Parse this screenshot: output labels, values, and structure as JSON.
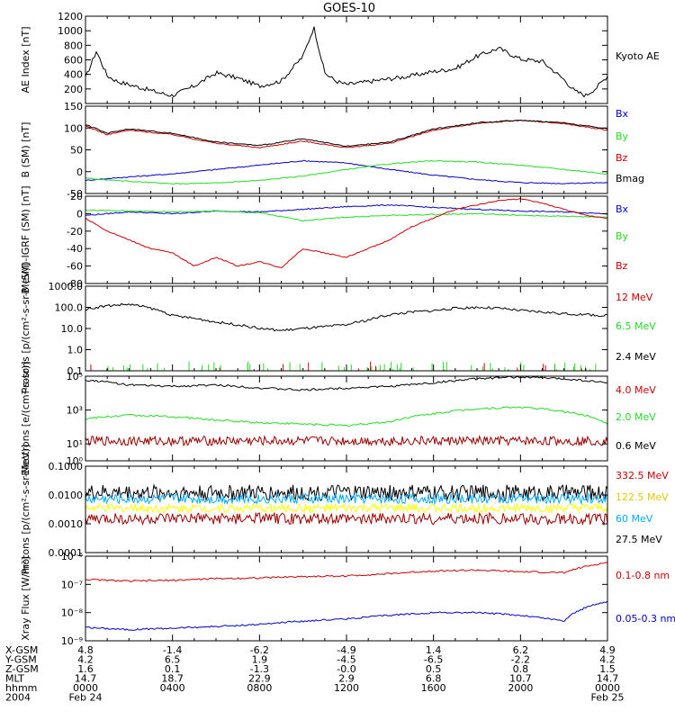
{
  "title": "GOES-10",
  "colors": {
    "black": "#000000",
    "blue": "#0000cc",
    "green": "#22dd22",
    "red": "#cc0000",
    "darkred": "#990000",
    "cyan": "#00aaff",
    "yellow": "#ffff00"
  },
  "chart_data": [
    {
      "type": "line",
      "ylabel": "AE Index [nT]",
      "ylim": [
        0,
        1200
      ],
      "yscale": "linear",
      "yticks": [
        {
          "v": 200,
          "label": "200"
        },
        {
          "v": 400,
          "label": "400"
        },
        {
          "v": 600,
          "label": "600"
        },
        {
          "v": 800,
          "label": "800"
        },
        {
          "v": 1000,
          "label": "1000"
        },
        {
          "v": 1200,
          "label": "1200"
        }
      ],
      "series": [
        {
          "name": "Kyoto AE",
          "color": "#000000",
          "legend_y": 62,
          "x": [
            0,
            0.5,
            1,
            1.5,
            2,
            2.5,
            3,
            3.5,
            4,
            5,
            6,
            7,
            8,
            9,
            10,
            10.5,
            11,
            11.5,
            12,
            13,
            14,
            15,
            16,
            17,
            18,
            19,
            20,
            21,
            22,
            22.5,
            23,
            23.5,
            24
          ],
          "values": [
            350,
            720,
            380,
            300,
            260,
            220,
            180,
            140,
            110,
            240,
            420,
            350,
            240,
            310,
            650,
            1050,
            420,
            310,
            260,
            300,
            340,
            380,
            440,
            480,
            650,
            760,
            610,
            580,
            330,
            170,
            110,
            220,
            380
          ]
        }
      ]
    },
    {
      "type": "line",
      "ylabel": "B (SM) [nT]",
      "ylim": [
        -50,
        150
      ],
      "yscale": "linear",
      "yticks": [
        {
          "v": -50,
          "label": "-50"
        },
        {
          "v": 0,
          "label": "0"
        },
        {
          "v": 50,
          "label": "50"
        },
        {
          "v": 100,
          "label": "100"
        },
        {
          "v": 150,
          "label": "150"
        }
      ],
      "series": [
        {
          "name": "Bx",
          "color": "#0000cc",
          "legend_y": 126,
          "x": [
            0,
            2,
            4,
            6,
            8,
            10,
            12,
            14,
            16,
            18,
            20,
            22,
            24
          ],
          "values": [
            -20,
            -12,
            -5,
            5,
            15,
            25,
            20,
            5,
            -8,
            -18,
            -25,
            -27,
            -25
          ]
        },
        {
          "name": "By",
          "color": "#22dd22",
          "legend_y": 151,
          "x": [
            0,
            2,
            4,
            6,
            8,
            10,
            12,
            14,
            16,
            18,
            20,
            22,
            24
          ],
          "values": [
            -15,
            -22,
            -28,
            -26,
            -20,
            -10,
            5,
            18,
            25,
            22,
            15,
            5,
            -5
          ]
        },
        {
          "name": "Bz",
          "color": "#cc0000",
          "legend_y": 175,
          "x": [
            0,
            1,
            2,
            4,
            6,
            8,
            10,
            12,
            14,
            16,
            18,
            20,
            22,
            24
          ],
          "values": [
            105,
            85,
            95,
            85,
            65,
            55,
            70,
            55,
            65,
            95,
            110,
            118,
            110,
            95
          ]
        },
        {
          "name": "Bmag",
          "color": "#000000",
          "legend_y": 198,
          "x": [
            0,
            1,
            2,
            4,
            6,
            8,
            10,
            12,
            14,
            16,
            18,
            20,
            22,
            24
          ],
          "values": [
            108,
            88,
            98,
            88,
            68,
            60,
            75,
            58,
            68,
            98,
            112,
            118,
            112,
            98
          ]
        }
      ]
    },
    {
      "type": "line",
      "ylabel": "B (SM)-IGRF (SM) [nT]",
      "ylim": [
        -80,
        20
      ],
      "yscale": "linear",
      "yticks": [
        {
          "v": -80,
          "label": "-80"
        },
        {
          "v": -60,
          "label": "-60"
        },
        {
          "v": -40,
          "label": "-40"
        },
        {
          "v": -20,
          "label": "-20"
        },
        {
          "v": 0,
          "label": "0"
        },
        {
          "v": 20,
          "label": "20"
        }
      ],
      "series": [
        {
          "name": "Bx",
          "color": "#0000cc",
          "legend_y": 232,
          "x": [
            0,
            2,
            4,
            6,
            8,
            10,
            12,
            14,
            16,
            18,
            20,
            22,
            24
          ],
          "values": [
            -2,
            2,
            0,
            3,
            2,
            5,
            8,
            10,
            7,
            5,
            3,
            2,
            0
          ]
        },
        {
          "name": "By",
          "color": "#22dd22",
          "legend_y": 262,
          "x": [
            0,
            2,
            4,
            6,
            8,
            10,
            12,
            14,
            16,
            18,
            20,
            22,
            24
          ],
          "values": [
            4,
            3,
            2,
            3,
            1,
            -8,
            -4,
            -2,
            -1,
            0,
            -2,
            -3,
            -4
          ]
        },
        {
          "name": "Bz",
          "color": "#cc0000",
          "legend_y": 295,
          "x": [
            0,
            1,
            2,
            3,
            4,
            5,
            6,
            7,
            8,
            9,
            10,
            11,
            12,
            13,
            14,
            15,
            16,
            17,
            18,
            19,
            20,
            21,
            22,
            23,
            24
          ],
          "values": [
            -5,
            -20,
            -30,
            -40,
            -45,
            -60,
            -50,
            -60,
            -55,
            -62,
            -40,
            -45,
            -50,
            -40,
            -30,
            -15,
            -5,
            5,
            10,
            15,
            17,
            12,
            5,
            -2,
            -5
          ]
        }
      ]
    },
    {
      "type": "line",
      "ylabel": "Protons [p/(cm²-s-sr-MeV)]",
      "ylim": [
        0.1,
        1000
      ],
      "yscale": "log",
      "yticks": [
        {
          "v": 0.1,
          "label": "0.1"
        },
        {
          "v": 1,
          "label": "1.0"
        },
        {
          "v": 10,
          "label": "10.0"
        },
        {
          "v": 100,
          "label": "100.0"
        },
        {
          "v": 1000,
          "label": "1000.0"
        }
      ],
      "series": [
        {
          "name": "12 MeV",
          "color": "#cc0000",
          "legend_y": 330,
          "x": [],
          "values": []
        },
        {
          "name": "6.5 MeV",
          "color": "#22dd22",
          "legend_y": 362,
          "x": [],
          "values": []
        },
        {
          "name": "2.4 MeV",
          "color": "#000000",
          "legend_y": 396,
          "x": [
            0,
            1,
            2,
            3,
            4,
            5,
            6,
            7,
            8,
            9,
            10,
            11,
            12,
            13,
            14,
            15,
            16,
            17,
            18,
            19,
            20,
            21,
            22,
            23,
            24
          ],
          "values": [
            80,
            120,
            140,
            90,
            40,
            30,
            20,
            15,
            10,
            8,
            10,
            12,
            15,
            25,
            45,
            60,
            70,
            90,
            100,
            90,
            70,
            60,
            50,
            45,
            40
          ]
        }
      ]
    },
    {
      "type": "line",
      "ylabel": "Electrons [e/(cm²-s-sr)]",
      "ylim": [
        1,
        100000
      ],
      "yscale": "log",
      "yticks": [
        {
          "v": 1,
          "label": "10⁰"
        },
        {
          "v": 10,
          "label": "10¹"
        },
        {
          "v": 1000,
          "label": "10³"
        },
        {
          "v": 100000,
          "label": "10⁵"
        }
      ],
      "series": [
        {
          "name": "4.0 MeV",
          "color": "#cc0000",
          "legend_y": 433,
          "x": [],
          "values": []
        },
        {
          "name": "2.0 MeV",
          "color": "#22dd22",
          "legend_y": 463,
          "x": [
            0,
            2,
            4,
            6,
            8,
            10,
            12,
            14,
            16,
            18,
            20,
            22,
            24
          ],
          "values": [
            300,
            500,
            400,
            250,
            180,
            150,
            120,
            200,
            600,
            1200,
            1500,
            800,
            150
          ]
        },
        {
          "name": "0.6 MeV",
          "color": "#000000",
          "legend_y": 495,
          "x": [
            0,
            2,
            4,
            6,
            8,
            10,
            12,
            14,
            16,
            18,
            20,
            22,
            24
          ],
          "values": [
            60000,
            30000,
            25000,
            30000,
            20000,
            15000,
            20000,
            25000,
            40000,
            70000,
            90000,
            70000,
            40000
          ]
        }
      ]
    },
    {
      "type": "line",
      "ylabel": "Protons [p/(cm²-s-sr-MeV)]",
      "ylim": [
        0.0001,
        0.1
      ],
      "yscale": "log",
      "yticks": [
        {
          "v": 0.0001,
          "label": "0.0001"
        },
        {
          "v": 0.001,
          "label": "0.0010"
        },
        {
          "v": 0.01,
          "label": "0.0100"
        },
        {
          "v": 0.1,
          "label": "0.1000"
        }
      ],
      "series": [
        {
          "name": "332.5 MeV",
          "color": "#cc0000",
          "legend_y": 528,
          "x": [],
          "values": []
        },
        {
          "name": "122.5 MeV",
          "color": "#ffff00",
          "legend_y": 552,
          "x": [],
          "values": []
        },
        {
          "name": "60 MeV",
          "color": "#00aaff",
          "legend_y": 576,
          "x": [],
          "values": []
        },
        {
          "name": "27.5 MeV",
          "color": "#000000",
          "legend_y": 599,
          "x": [],
          "values": []
        }
      ]
    },
    {
      "type": "line",
      "ylabel": "Xray Flux [W/m²]",
      "ylim": [
        1e-09,
        1e-06
      ],
      "yscale": "log",
      "yticks": [
        {
          "v": 1e-09,
          "label": "10⁻⁹"
        },
        {
          "v": 1e-08,
          "label": "10⁻⁸"
        },
        {
          "v": 1e-07,
          "label": "10⁻⁷"
        },
        {
          "v": 1e-06,
          "label": "10⁻⁶"
        }
      ],
      "series": [
        {
          "name": "0.1-0.8 nm",
          "color": "#cc0000",
          "legend_y": 639,
          "x": [
            0,
            2,
            4,
            6,
            8,
            10,
            12,
            14,
            16,
            18,
            20,
            22,
            24
          ],
          "values": [
            1.5e-07,
            1.3e-07,
            1.4e-07,
            1.6e-07,
            1.7e-07,
            1.9e-07,
            2e-07,
            2.4e-07,
            3e-07,
            3.2e-07,
            2.8e-07,
            2.6e-07,
            6e-07
          ]
        },
        {
          "name": "0.05-0.3 nm",
          "color": "#0000cc",
          "legend_y": 687,
          "x": [
            0,
            2,
            4,
            6,
            8,
            10,
            12,
            14,
            16,
            18,
            20,
            22,
            24
          ],
          "values": [
            3e-09,
            2.5e-09,
            2.8e-09,
            3.2e-09,
            3.8e-09,
            5e-09,
            6e-09,
            8e-09,
            1e-08,
            1e-08,
            8e-09,
            5e-09,
            2.5e-08
          ]
        }
      ]
    }
  ],
  "footer": {
    "rows": [
      {
        "label": "X-GSM",
        "values": [
          "4.8",
          "-1.4",
          "-6.2",
          "-4.9",
          "1.4",
          "6.2",
          "4.9"
        ]
      },
      {
        "label": "Y-GSM",
        "values": [
          "4.2",
          "6.5",
          "1.9",
          "-4.5",
          "-6.5",
          "-2.2",
          "4.2"
        ]
      },
      {
        "label": "Z-GSM",
        "values": [
          "1.6",
          "0.1",
          "-1.3",
          "-0.0",
          "0.5",
          "0.8",
          "1.5"
        ]
      },
      {
        "label": "MLT",
        "values": [
          "14.7",
          "18.7",
          "22.9",
          "2.9",
          "6.8",
          "10.7",
          "14.7"
        ]
      },
      {
        "label": "hhmm",
        "values": [
          "0000",
          "0400",
          "0800",
          "1200",
          "1600",
          "2000",
          "0000"
        ]
      },
      {
        "label": "2004",
        "values": [
          "Feb 24",
          "",
          "",
          "",
          "",
          "",
          "Feb 25"
        ]
      }
    ]
  }
}
